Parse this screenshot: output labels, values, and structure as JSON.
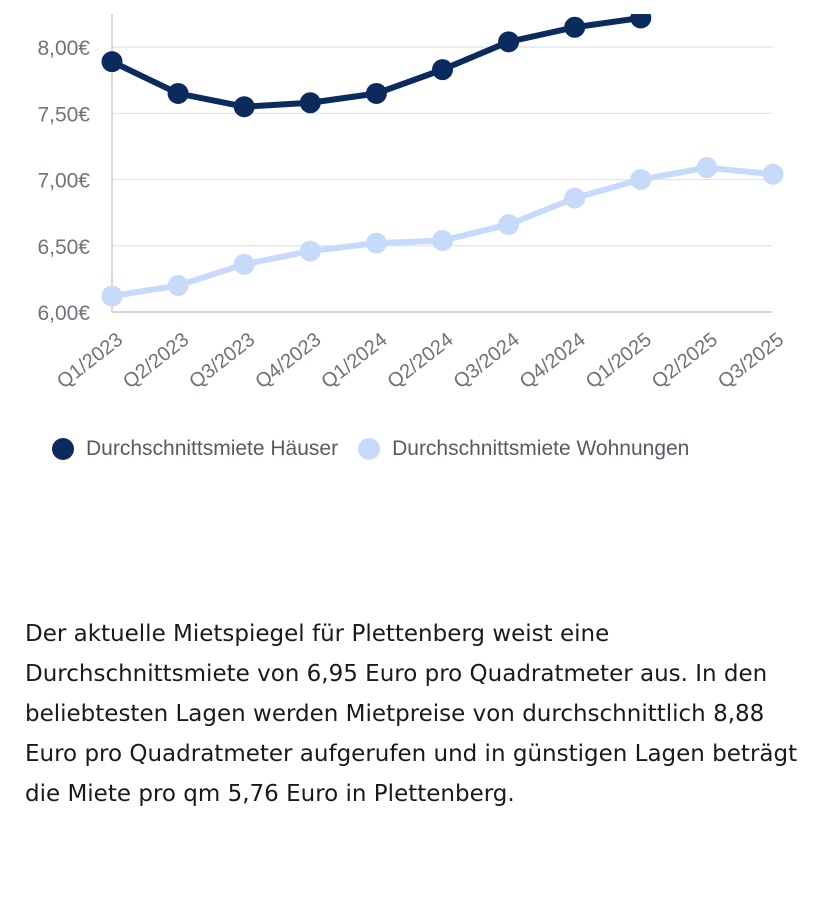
{
  "chart_data": {
    "type": "line",
    "categories": [
      "Q1/2023",
      "Q2/2023",
      "Q3/2023",
      "Q4/2023",
      "Q1/2024",
      "Q2/2024",
      "Q3/2024",
      "Q4/2024",
      "Q1/2025",
      "Q2/2025",
      "Q3/2025"
    ],
    "y_tick_labels": [
      "6,00€",
      "6,50€",
      "7,00€",
      "7,50€",
      "8,00€"
    ],
    "y_ticks": [
      6.0,
      6.5,
      7.0,
      7.5,
      8.0
    ],
    "ylim": [
      6.0,
      8.25
    ],
    "grid": true,
    "legend_position": "bottom",
    "series": [
      {
        "name": "Durchschnittsmiete Häuser",
        "color": "#0b2a5e",
        "values": [
          7.89,
          7.65,
          7.55,
          7.58,
          7.65,
          7.83,
          8.04,
          8.15,
          8.22,
          null,
          null
        ]
      },
      {
        "name": "Durchschnittsmiete Wohnungen",
        "color": "#c8dafa",
        "values": [
          6.12,
          6.2,
          6.36,
          6.46,
          6.52,
          6.54,
          6.66,
          6.86,
          7.0,
          7.09,
          7.04
        ]
      }
    ]
  },
  "legend": {
    "houses_label": "Durchschnittsmiete Häuser",
    "apartments_label": "Durchschnittsmiete Wohnungen"
  },
  "text": {
    "paragraph": "Der aktuelle Mietspiegel für Plettenberg weist eine Durchschnittsmiete von 6,95 Euro pro Quadratmeter aus. In den beliebtesten Lagen werden Mietpreise von durchschnittlich 8,88 Euro pro Quadratmeter aufgerufen und in günstigen Lagen beträgt die Miete pro qm 5,76 Euro in Plettenberg."
  }
}
